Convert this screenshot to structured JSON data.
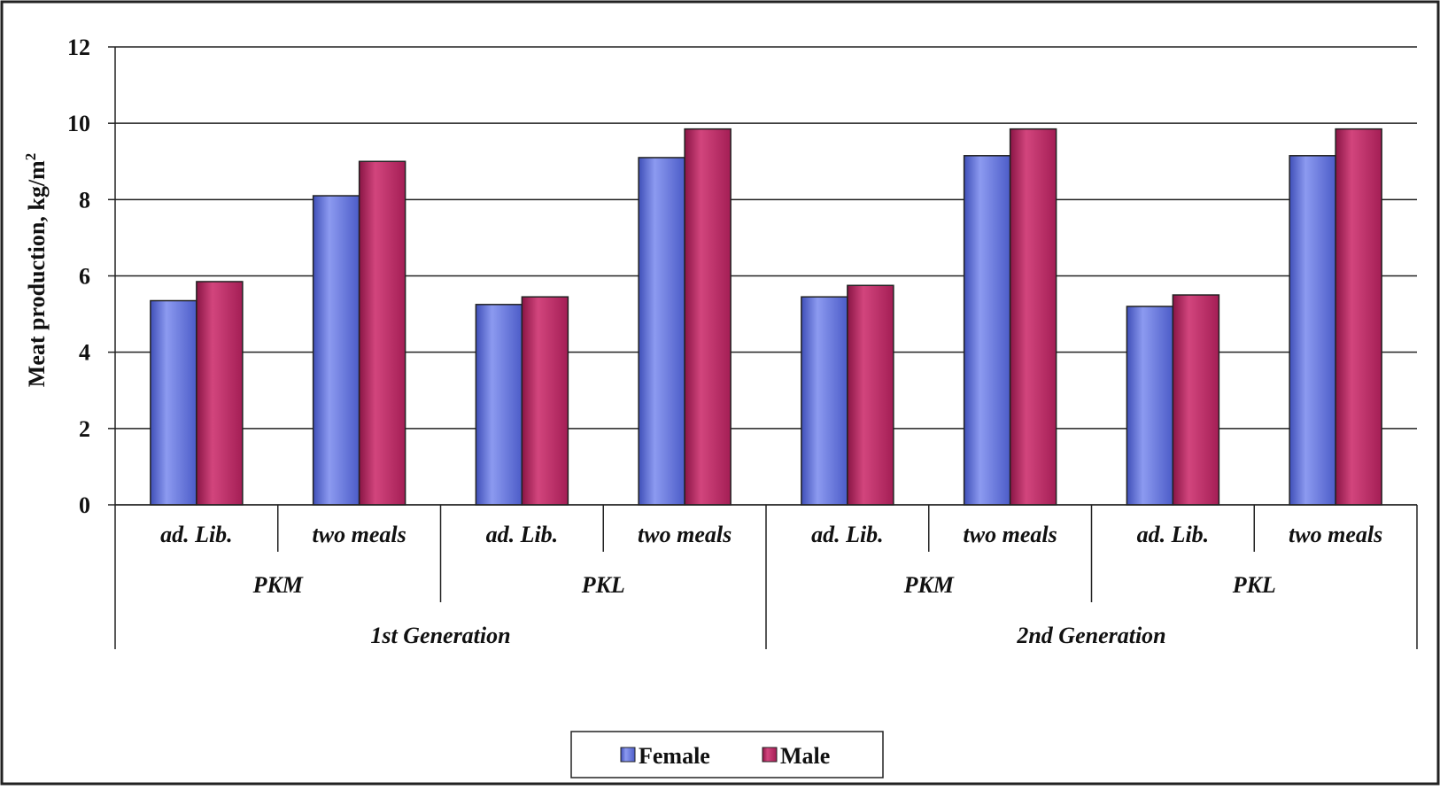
{
  "chart_data": {
    "type": "bar",
    "title": "",
    "xlabel": "",
    "ylabel": "Meat production,  kg/m",
    "ylabel_superscript": "2",
    "ylim": [
      0,
      12
    ],
    "yticks": [
      0,
      2,
      4,
      6,
      8,
      10,
      12
    ],
    "grid": true,
    "legend_position": "bottom-center",
    "categories": [
      "ad. Lib.",
      "two meals",
      "ad. Lib.",
      "two meals",
      "ad. Lib.",
      "two meals",
      "ad. Lib.",
      "two meals"
    ],
    "level2": [
      {
        "label": "PKM",
        "span": [
          0,
          1
        ]
      },
      {
        "label": "PKL",
        "span": [
          2,
          3
        ]
      },
      {
        "label": "PKM",
        "span": [
          4,
          5
        ]
      },
      {
        "label": "PKL",
        "span": [
          6,
          7
        ]
      }
    ],
    "level3": [
      {
        "label": "1st Generation",
        "span": [
          0,
          3
        ]
      },
      {
        "label": "2nd Generation",
        "span": [
          4,
          7
        ]
      }
    ],
    "series": [
      {
        "name": "Female",
        "color": "#5f6fd8",
        "values": [
          5.35,
          8.1,
          5.25,
          9.1,
          5.45,
          9.15,
          5.2,
          9.15
        ]
      },
      {
        "name": "Male",
        "color": "#b5265f",
        "values": [
          5.85,
          9.0,
          5.45,
          9.85,
          5.75,
          9.85,
          5.5,
          9.85
        ]
      }
    ]
  }
}
